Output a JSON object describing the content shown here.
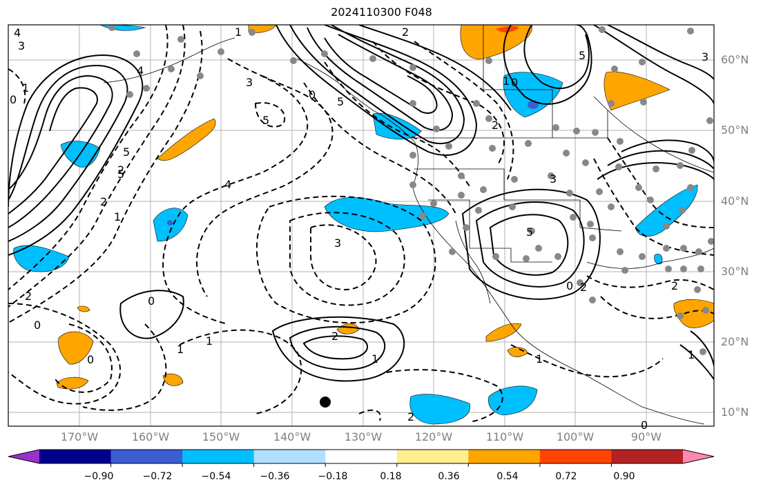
{
  "title": "2024110300 F048",
  "map": {
    "lon_ticks": [
      "170°W",
      "160°W",
      "150°W",
      "140°W",
      "130°W",
      "120°W",
      "110°W",
      "100°W",
      "90°W"
    ],
    "lat_ticks": [
      "60°N",
      "50°N",
      "40°N",
      "30°N",
      "20°N",
      "10°N"
    ],
    "contour_labels": [
      "4",
      "3",
      "0",
      "1",
      "5",
      "2",
      "2",
      "1",
      "3",
      "5",
      "4",
      "1",
      "2",
      "3",
      "0",
      "5",
      "2",
      "1",
      "0",
      "2",
      "0",
      "1",
      "2",
      "5",
      "3",
      "4",
      "1",
      "2",
      "0",
      "0",
      "1",
      "2",
      "1",
      "2",
      "0",
      "0",
      "1",
      "5",
      "3",
      "5"
    ]
  },
  "colorbar": {
    "tick_labels": [
      "−0.90",
      "−0.72",
      "−0.54",
      "−0.36",
      "−0.18",
      "0.18",
      "0.36",
      "0.54",
      "0.72",
      "0.90"
    ],
    "colors": [
      "#9932cc",
      "#00008b",
      "#3a5ed0",
      "#00bfff",
      "#b0e0ff",
      "#ffffff",
      "#ffee90",
      "#ffa500",
      "#ff4500",
      "#b22222",
      "#ff88b0"
    ]
  }
}
